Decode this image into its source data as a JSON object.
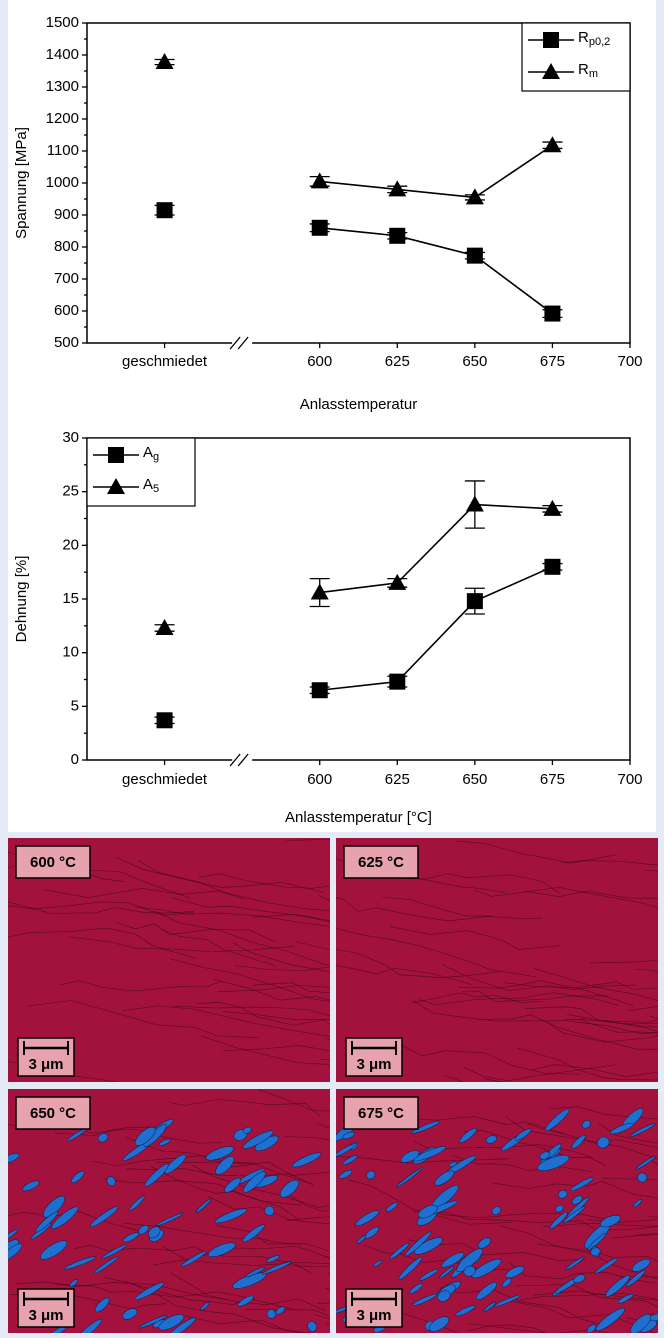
{
  "chart_data": [
    {
      "type": "line",
      "y_label": "Spannung [MPa]",
      "x_label": "Anlasstemperatur",
      "categories": [
        "geschmiedet",
        null,
        "600",
        "625",
        "650",
        "675",
        "700"
      ],
      "series": [
        {
          "name": "Rp0,2",
          "color": "#000000",
          "marker": "square",
          "values": [
            915,
            null,
            860,
            835,
            773,
            592,
            null
          ],
          "errors": [
            15,
            null,
            12,
            10,
            10,
            12,
            null
          ]
        },
        {
          "name": "Rm",
          "color": "#000000",
          "marker": "triangle",
          "values": [
            1378,
            null,
            1005,
            980,
            955,
            1118,
            null
          ],
          "errors": [
            8,
            null,
            15,
            10,
            8,
            10,
            null
          ]
        }
      ],
      "ylim": [
        500,
        1500
      ],
      "yticks": [
        500,
        600,
        700,
        800,
        900,
        1000,
        1100,
        1200,
        1300,
        1400,
        1500
      ],
      "legend": "upper right",
      "grid": false
    },
    {
      "type": "line",
      "y_label": "Dehnung [%]",
      "x_label": "Anlasstemperatur [°C]",
      "categories": [
        "geschmiedet",
        null,
        "600",
        "625",
        "650",
        "675",
        "700"
      ],
      "series": [
        {
          "name": "Ag",
          "color": "#000000",
          "marker": "square",
          "values": [
            3.7,
            null,
            6.5,
            7.3,
            14.8,
            18.0,
            null
          ],
          "errors": [
            0.3,
            null,
            0.3,
            0.5,
            1.2,
            0.3,
            null
          ]
        },
        {
          "name": "A5",
          "color": "#000000",
          "marker": "triangle",
          "values": [
            12.3,
            null,
            15.6,
            16.5,
            23.8,
            23.4,
            null
          ],
          "errors": [
            0.3,
            null,
            1.3,
            0.4,
            2.2,
            0.3,
            null
          ]
        }
      ],
      "ylim": [
        0,
        30
      ],
      "yticks": [
        0,
        5,
        10,
        15,
        20,
        25,
        30
      ],
      "legend": "upper left",
      "grid": false
    }
  ],
  "micrographs": [
    {
      "label": "600 °C",
      "scale_bar": "3 μm"
    },
    {
      "label": "625 °C",
      "scale_bar": "3 μm"
    },
    {
      "label": "650 °C",
      "scale_bar": "3 μm"
    },
    {
      "label": "675 °C",
      "scale_bar": "3 μm"
    }
  ]
}
